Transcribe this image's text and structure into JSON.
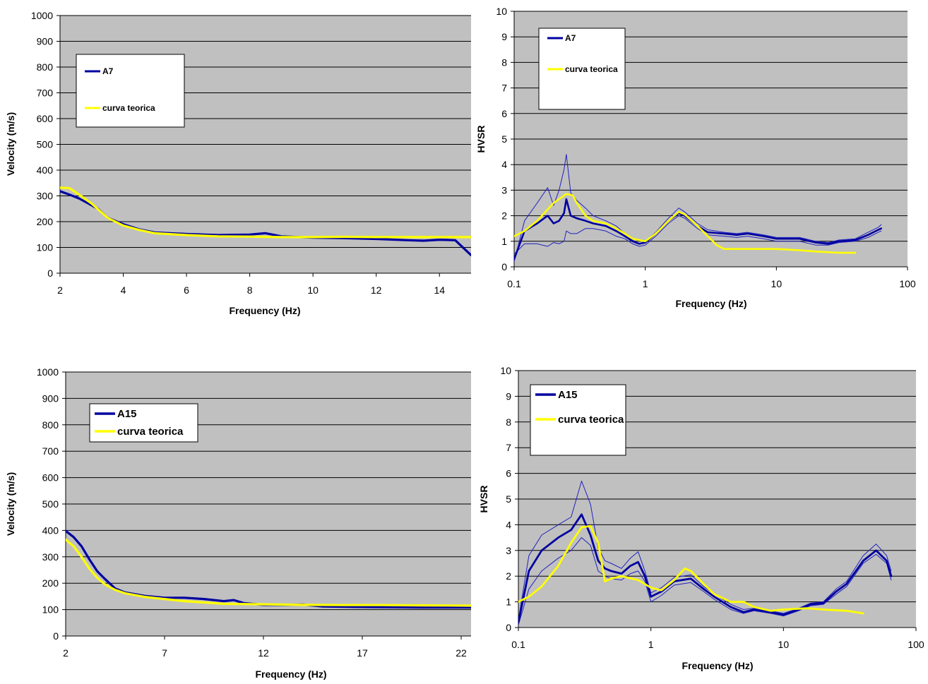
{
  "chart_data": [
    {
      "type": "line",
      "xlabel": "Frequency (Hz)",
      "ylabel": "Velocity (m/s)",
      "xlim": [
        2,
        15
      ],
      "ylim": [
        0,
        1000
      ],
      "xticks": [
        "2",
        "4",
        "6",
        "8",
        "10",
        "12",
        "14"
      ],
      "yticks": [
        "0",
        "100",
        "200",
        "300",
        "400",
        "500",
        "600",
        "700",
        "800",
        "900",
        "1000"
      ],
      "legend_position": "upper-left",
      "colors": {
        "plot_bg": "#c0c0c0",
        "grid": "#000000"
      },
      "series": [
        {
          "name": "A7",
          "color": "#0000a0",
          "x": [
            2,
            2.3,
            2.6,
            2.9,
            3.2,
            3.5,
            4,
            4.5,
            5,
            6,
            7,
            8,
            8.5,
            9,
            10,
            11,
            12,
            13,
            13.5,
            14,
            14.5,
            15
          ],
          "y": [
            318,
            305,
            290,
            270,
            250,
            215,
            190,
            170,
            158,
            152,
            148,
            150,
            155,
            143,
            138,
            136,
            133,
            128,
            126,
            130,
            128,
            70
          ]
        },
        {
          "name": "curva teorica",
          "color": "#ffff00",
          "x": [
            2,
            2.3,
            2.6,
            3,
            3.5,
            4,
            4.5,
            5,
            6,
            7,
            8,
            9,
            10,
            11,
            12,
            13,
            14,
            15
          ],
          "y": [
            332,
            330,
            305,
            270,
            215,
            185,
            168,
            155,
            148,
            143,
            142,
            140,
            140,
            141,
            140,
            140,
            140,
            140
          ]
        }
      ]
    },
    {
      "type": "line",
      "xlabel": "Frequency (Hz)",
      "ylabel": "HVSR",
      "xscale": "log",
      "xlim": [
        0.1,
        100
      ],
      "ylim": [
        0,
        10
      ],
      "xticks": [
        "0.1",
        "1",
        "10",
        "100"
      ],
      "yticks": [
        "0",
        "1",
        "2",
        "3",
        "4",
        "5",
        "6",
        "7",
        "8",
        "9",
        "10"
      ],
      "legend_position": "upper-left",
      "colors": {
        "plot_bg": "#c0c0c0",
        "grid": "#000000"
      },
      "series": [
        {
          "name": "A7",
          "color": "#0000a0",
          "x": [
            0.1,
            0.12,
            0.15,
            0.18,
            0.2,
            0.22,
            0.24,
            0.25,
            0.27,
            0.3,
            0.35,
            0.4,
            0.5,
            0.6,
            0.7,
            0.8,
            0.9,
            1.0,
            1.2,
            1.5,
            1.8,
            2.0,
            2.5,
            3,
            4,
            5,
            6,
            8,
            10,
            15,
            20,
            25,
            30,
            40,
            50,
            60,
            63
          ],
          "y": [
            0.3,
            1.4,
            1.7,
            2.0,
            1.7,
            1.8,
            2.1,
            2.65,
            2.0,
            1.9,
            1.8,
            1.7,
            1.6,
            1.4,
            1.2,
            1.0,
            0.9,
            0.95,
            1.3,
            1.8,
            2.1,
            2.0,
            1.6,
            1.35,
            1.3,
            1.25,
            1.3,
            1.2,
            1.1,
            1.1,
            0.95,
            0.9,
            1.0,
            1.05,
            1.25,
            1.45,
            1.5
          ]
        },
        {
          "name": "",
          "color": "#2020c0",
          "x": [
            0.1,
            0.12,
            0.15,
            0.18,
            0.2,
            0.22,
            0.24,
            0.25,
            0.27,
            0.3,
            0.35,
            0.4,
            0.5,
            0.6,
            0.7,
            0.8,
            0.9,
            1.0,
            1.2,
            1.5,
            1.8,
            2.0,
            2.5,
            3,
            4,
            5,
            6,
            8,
            10,
            15,
            20,
            25,
            30,
            40,
            50,
            60,
            63
          ],
          "y": [
            0.2,
            1.8,
            2.5,
            3.1,
            2.4,
            3.0,
            3.8,
            4.4,
            2.9,
            2.6,
            2.3,
            2.0,
            1.8,
            1.6,
            1.3,
            1.05,
            0.9,
            1.0,
            1.35,
            1.9,
            2.3,
            2.15,
            1.7,
            1.45,
            1.35,
            1.3,
            1.35,
            1.25,
            1.15,
            1.15,
            1.0,
            0.95,
            1.05,
            1.1,
            1.35,
            1.55,
            1.65
          ]
        },
        {
          "name": "",
          "color": "#2020c0",
          "x": [
            0.1,
            0.12,
            0.15,
            0.18,
            0.2,
            0.22,
            0.24,
            0.25,
            0.27,
            0.3,
            0.35,
            0.4,
            0.5,
            0.6,
            0.7,
            0.8,
            0.9,
            1.0,
            1.2,
            1.5,
            1.8,
            2.0,
            2.5,
            3,
            4,
            5,
            6,
            8,
            10,
            15,
            20,
            25,
            30,
            40,
            50,
            60,
            63
          ],
          "y": [
            0.5,
            0.9,
            0.9,
            0.8,
            0.95,
            0.9,
            1.0,
            1.4,
            1.3,
            1.3,
            1.5,
            1.5,
            1.4,
            1.2,
            1.1,
            0.9,
            0.8,
            0.85,
            1.2,
            1.7,
            2.0,
            1.9,
            1.5,
            1.25,
            1.2,
            1.15,
            1.2,
            1.1,
            1.0,
            1.0,
            0.85,
            0.85,
            0.95,
            1.0,
            1.15,
            1.35,
            1.4
          ]
        },
        {
          "name": "curva teorica",
          "color": "#ffff00",
          "x": [
            0.1,
            0.12,
            0.15,
            0.2,
            0.25,
            0.28,
            0.3,
            0.35,
            0.4,
            0.5,
            0.6,
            0.7,
            0.8,
            1.0,
            1.2,
            1.5,
            1.8,
            2.0,
            2.5,
            3,
            3.5,
            4,
            5,
            7,
            10,
            15,
            20,
            30,
            40
          ],
          "y": [
            1.2,
            1.4,
            1.8,
            2.5,
            2.85,
            2.8,
            2.5,
            2.0,
            1.8,
            1.7,
            1.5,
            1.3,
            1.1,
            1.0,
            1.3,
            1.8,
            2.15,
            2.05,
            1.6,
            1.2,
            0.85,
            0.7,
            0.7,
            0.7,
            0.7,
            0.65,
            0.6,
            0.55,
            0.55
          ]
        }
      ]
    },
    {
      "type": "line",
      "xlabel": "Frequency (Hz)",
      "ylabel": "Velocity (m/s)",
      "xlim": [
        2,
        22.5
      ],
      "ylim": [
        0,
        1000
      ],
      "xticks": [
        "2",
        "7",
        "12",
        "17",
        "22"
      ],
      "yticks": [
        "0",
        "100",
        "200",
        "300",
        "400",
        "500",
        "600",
        "700",
        "800",
        "900",
        "1000"
      ],
      "legend_position": "upper-left",
      "colors": {
        "plot_bg": "#c0c0c0",
        "grid": "#000000"
      },
      "series": [
        {
          "name": "A15",
          "color": "#0000a0",
          "x": [
            2,
            2.4,
            2.8,
            3.2,
            3.6,
            4,
            4.5,
            5,
            6,
            7,
            8,
            9,
            10,
            10.5,
            11,
            12,
            13,
            14,
            15,
            17,
            20,
            22.5
          ],
          "y": [
            398,
            375,
            340,
            290,
            245,
            215,
            180,
            165,
            152,
            145,
            145,
            140,
            132,
            136,
            125,
            118,
            118,
            119,
            112,
            110,
            108,
            108
          ]
        },
        {
          "name": "curva teorica",
          "color": "#ffff00",
          "x": [
            2,
            2.4,
            2.8,
            3.2,
            3.6,
            4,
            4.5,
            5,
            6,
            7,
            8,
            9,
            10,
            12,
            14,
            16,
            18,
            20,
            22.5
          ],
          "y": [
            365,
            340,
            300,
            255,
            220,
            195,
            175,
            162,
            148,
            140,
            132,
            127,
            122,
            120,
            118,
            117,
            117,
            116,
            115
          ]
        }
      ]
    },
    {
      "type": "line",
      "xlabel": "Frequency (Hz)",
      "ylabel": "HVSR",
      "xscale": "log",
      "xlim": [
        0.1,
        100
      ],
      "ylim": [
        0,
        10
      ],
      "xticks": [
        "0.1",
        "1",
        "10",
        "100"
      ],
      "yticks": [
        "0",
        "1",
        "2",
        "3",
        "4",
        "5",
        "6",
        "7",
        "8",
        "9",
        "10"
      ],
      "legend_position": "upper-left",
      "colors": {
        "plot_bg": "#c0c0c0",
        "grid": "#000000"
      },
      "series": [
        {
          "name": "A15",
          "color": "#0000a0",
          "x": [
            0.1,
            0.12,
            0.15,
            0.2,
            0.25,
            0.3,
            0.35,
            0.4,
            0.45,
            0.5,
            0.6,
            0.7,
            0.8,
            0.9,
            1.0,
            1.2,
            1.5,
            2.0,
            2.5,
            3,
            4,
            5,
            6,
            8,
            10,
            13,
            16,
            20,
            25,
            30,
            40,
            50,
            60,
            65
          ],
          "y": [
            0.2,
            2.2,
            3.0,
            3.5,
            3.8,
            4.4,
            3.6,
            2.6,
            2.3,
            2.2,
            2.1,
            2.4,
            2.55,
            2.0,
            1.2,
            1.4,
            1.8,
            1.9,
            1.5,
            1.2,
            0.8,
            0.6,
            0.7,
            0.6,
            0.5,
            0.7,
            0.9,
            0.95,
            1.4,
            1.7,
            2.6,
            3.0,
            2.6,
            2.0
          ]
        },
        {
          "name": "",
          "color": "#2020c0",
          "x": [
            0.1,
            0.12,
            0.15,
            0.2,
            0.25,
            0.3,
            0.35,
            0.4,
            0.45,
            0.5,
            0.6,
            0.7,
            0.8,
            0.9,
            1.0,
            1.2,
            1.5,
            2.0,
            2.5,
            3,
            4,
            5,
            6,
            8,
            10,
            13,
            16,
            20,
            25,
            30,
            40,
            50,
            60,
            65
          ],
          "y": [
            0.3,
            2.8,
            3.6,
            4.0,
            4.3,
            5.7,
            4.8,
            3.1,
            2.6,
            2.5,
            2.3,
            2.7,
            2.95,
            2.2,
            1.35,
            1.55,
            1.95,
            2.05,
            1.6,
            1.3,
            0.9,
            0.7,
            0.75,
            0.65,
            0.55,
            0.75,
            0.95,
            1.0,
            1.5,
            1.8,
            2.8,
            3.25,
            2.8,
            2.2
          ]
        },
        {
          "name": "",
          "color": "#2020c0",
          "x": [
            0.1,
            0.12,
            0.15,
            0.2,
            0.25,
            0.3,
            0.35,
            0.4,
            0.45,
            0.5,
            0.6,
            0.7,
            0.8,
            0.9,
            1.0,
            1.2,
            1.5,
            2.0,
            2.5,
            3,
            4,
            5,
            6,
            8,
            10,
            13,
            16,
            20,
            25,
            30,
            40,
            50,
            60,
            65
          ],
          "y": [
            0.1,
            1.5,
            2.2,
            2.7,
            3.0,
            3.5,
            3.2,
            2.2,
            2.0,
            1.9,
            1.85,
            2.1,
            2.2,
            1.8,
            1.0,
            1.25,
            1.65,
            1.75,
            1.4,
            1.1,
            0.7,
            0.55,
            0.65,
            0.55,
            0.45,
            0.65,
            0.85,
            0.9,
            1.3,
            1.6,
            2.5,
            2.85,
            2.5,
            1.85
          ]
        },
        {
          "name": "curva teorica",
          "color": "#ffff00",
          "x": [
            0.1,
            0.12,
            0.15,
            0.2,
            0.25,
            0.3,
            0.35,
            0.4,
            0.45,
            0.5,
            0.6,
            0.8,
            1.0,
            1.2,
            1.5,
            1.8,
            2.0,
            2.5,
            3,
            4,
            5,
            6,
            8,
            10,
            15,
            20,
            30,
            40
          ],
          "y": [
            1.0,
            1.2,
            1.6,
            2.4,
            3.3,
            3.9,
            3.95,
            3.3,
            1.8,
            1.9,
            2.0,
            1.85,
            1.55,
            1.45,
            1.85,
            2.3,
            2.2,
            1.7,
            1.3,
            1.0,
            1.0,
            0.8,
            0.65,
            0.7,
            0.75,
            0.7,
            0.65,
            0.55
          ]
        }
      ]
    }
  ]
}
